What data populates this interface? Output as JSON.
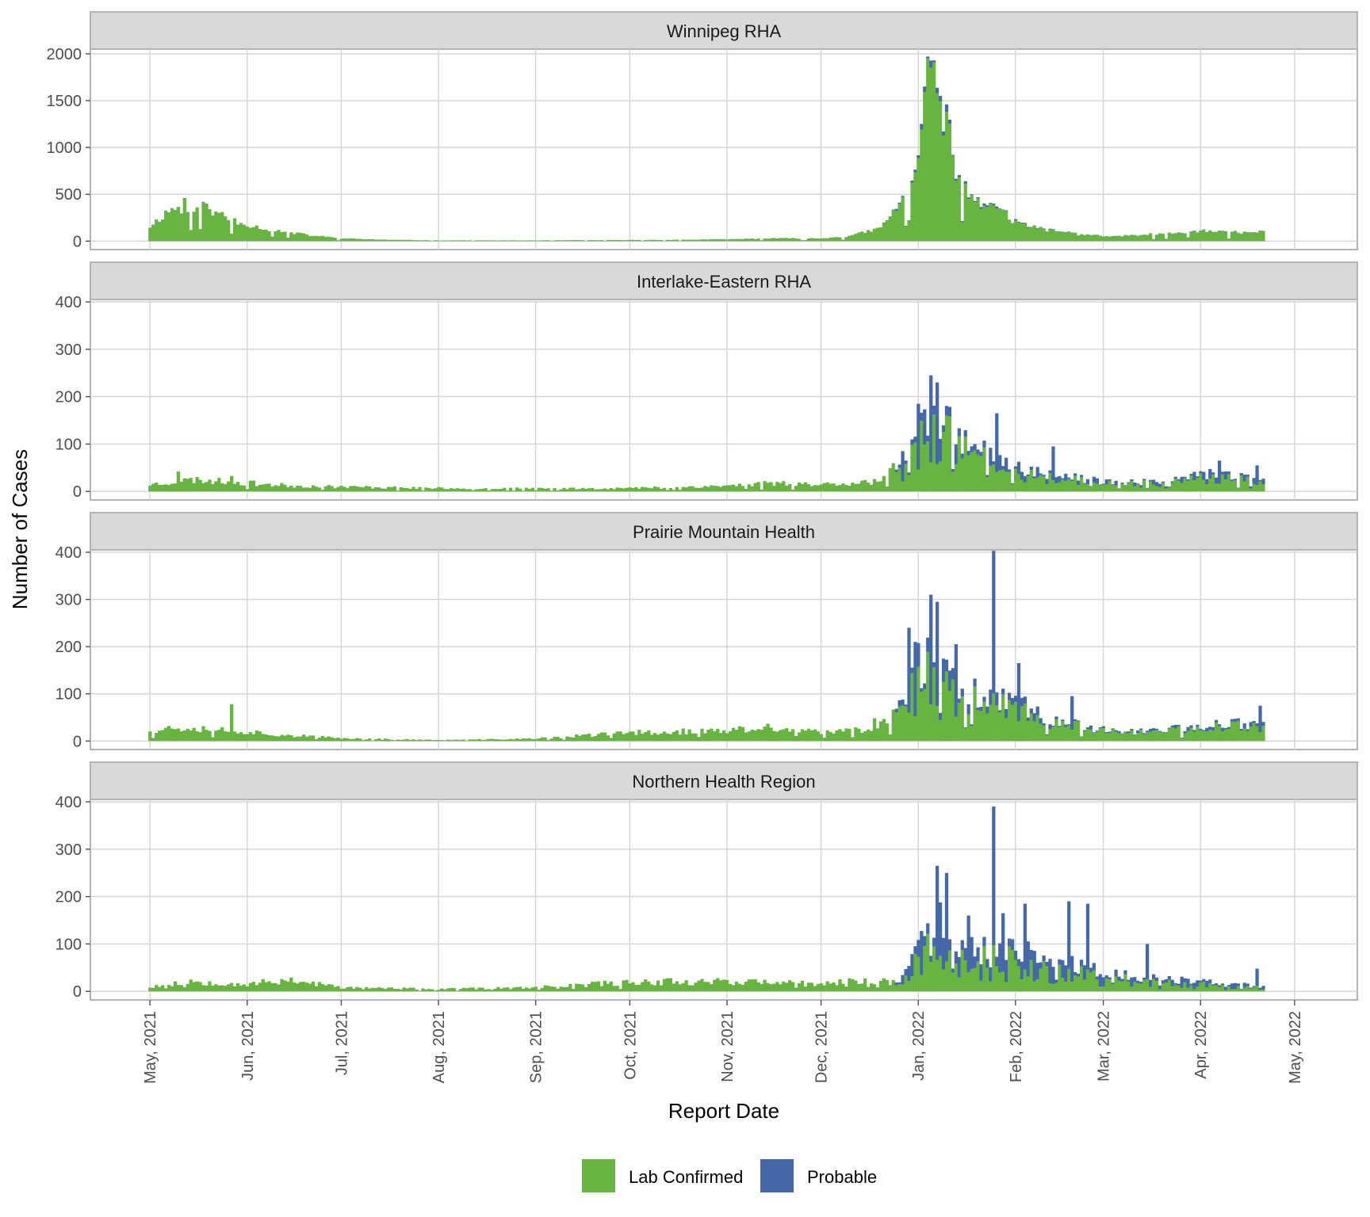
{
  "chart_data": {
    "type": "bar",
    "stacked": true,
    "xlabel": "Report Date",
    "ylabel": "Number of Cases",
    "x_ticks": [
      "May, 2021",
      "Jun, 2021",
      "Jul, 2021",
      "Aug, 2021",
      "Sep, 2021",
      "Oct, 2021",
      "Nov, 2021",
      "Dec, 2021",
      "Jan, 2022",
      "Feb, 2022",
      "Mar, 2022",
      "Apr, 2022",
      "May, 2022"
    ],
    "x_range": [
      "2021-04-12",
      "2022-05-21"
    ],
    "legend": {
      "position": "bottom",
      "entries": [
        {
          "name": "Lab Confirmed",
          "color": "#67b540"
        },
        {
          "name": "Probable",
          "color": "#4568a8"
        }
      ]
    },
    "grid": true,
    "panels": [
      {
        "title": "Winnipeg RHA",
        "ylim": [
          -90,
          2050
        ],
        "yticks": [
          0,
          500,
          1000,
          1500,
          2000
        ],
        "anchors": [
          [
            "2021-05-01",
            160
          ],
          [
            "2021-05-08",
            350
          ],
          [
            "2021-05-15",
            330
          ],
          [
            "2021-05-22",
            290
          ],
          [
            "2021-05-31",
            190
          ],
          [
            "2021-06-07",
            130
          ],
          [
            "2021-06-15",
            90
          ],
          [
            "2021-06-22",
            60
          ],
          [
            "2021-07-01",
            30
          ],
          [
            "2021-07-15",
            15
          ],
          [
            "2021-08-01",
            8
          ],
          [
            "2021-09-01",
            8
          ],
          [
            "2021-10-01",
            12
          ],
          [
            "2021-10-15",
            15
          ],
          [
            "2021-11-01",
            20
          ],
          [
            "2021-11-15",
            30
          ],
          [
            "2021-12-01",
            30
          ],
          [
            "2021-12-10",
            55
          ],
          [
            "2021-12-20",
            140
          ],
          [
            "2021-12-26",
            400
          ],
          [
            "2021-12-30",
            720
          ],
          [
            "2022-01-03",
            1450
          ],
          [
            "2022-01-05",
            1700
          ],
          [
            "2022-01-08",
            1550
          ],
          [
            "2022-01-11",
            1150
          ],
          [
            "2022-01-14",
            600
          ],
          [
            "2022-01-18",
            430
          ],
          [
            "2022-01-22",
            400
          ],
          [
            "2022-01-26",
            350
          ],
          [
            "2022-02-01",
            210
          ],
          [
            "2022-02-08",
            140
          ],
          [
            "2022-02-15",
            100
          ],
          [
            "2022-02-22",
            70
          ],
          [
            "2022-03-01",
            55
          ],
          [
            "2022-03-08",
            60
          ],
          [
            "2022-03-15",
            70
          ],
          [
            "2022-03-22",
            80
          ],
          [
            "2022-03-31",
            110
          ],
          [
            "2022-04-08",
            100
          ],
          [
            "2022-04-15",
            90
          ],
          [
            "2022-04-21",
            110
          ]
        ],
        "spikes": [
          [
            "2021-05-12",
            460
          ],
          [
            "2021-05-18",
            420
          ],
          [
            "2021-05-19",
            400
          ],
          [
            "2021-05-24",
            310
          ],
          [
            "2022-01-04",
            1970
          ],
          [
            "2022-01-06",
            1930
          ],
          [
            "2022-01-08",
            1550
          ],
          [
            "2022-01-16",
            640
          ],
          [
            "2022-01-24",
            410
          ],
          [
            "2022-01-10",
            1460
          ]
        ],
        "noise": 0.18,
        "probable_peak": 0.03,
        "probable_floor": 0.02,
        "seed": 11
      },
      {
        "title": "Interlake-Eastern RHA",
        "ylim": [
          -18,
          405
        ],
        "yticks": [
          0,
          100,
          200,
          300,
          400
        ],
        "anchors": [
          [
            "2021-05-01",
            15
          ],
          [
            "2021-05-15",
            25
          ],
          [
            "2021-06-01",
            18
          ],
          [
            "2021-06-15",
            12
          ],
          [
            "2021-07-01",
            10
          ],
          [
            "2021-08-01",
            7
          ],
          [
            "2021-09-01",
            6
          ],
          [
            "2021-10-01",
            7
          ],
          [
            "2021-11-01",
            12
          ],
          [
            "2021-11-15",
            18
          ],
          [
            "2021-12-01",
            15
          ],
          [
            "2021-12-20",
            22
          ],
          [
            "2021-12-26",
            55
          ],
          [
            "2021-12-30",
            110
          ],
          [
            "2022-01-03",
            165
          ],
          [
            "2022-01-06",
            200
          ],
          [
            "2022-01-10",
            140
          ],
          [
            "2022-01-15",
            110
          ],
          [
            "2022-01-20",
            90
          ],
          [
            "2022-01-26",
            70
          ],
          [
            "2022-02-01",
            50
          ],
          [
            "2022-02-10",
            35
          ],
          [
            "2022-02-20",
            30
          ],
          [
            "2022-03-01",
            20
          ],
          [
            "2022-03-15",
            20
          ],
          [
            "2022-03-29",
            30
          ],
          [
            "2022-04-08",
            40
          ],
          [
            "2022-04-21",
            20
          ]
        ],
        "spikes": [
          [
            "2022-01-05",
            245
          ],
          [
            "2022-01-07",
            230
          ],
          [
            "2022-01-01",
            185
          ],
          [
            "2021-12-27",
            85
          ],
          [
            "2022-01-26",
            165
          ],
          [
            "2022-02-13",
            95
          ],
          [
            "2022-04-07",
            65
          ],
          [
            "2022-04-19",
            55
          ],
          [
            "2021-05-10",
            42
          ],
          [
            "2021-05-27",
            33
          ]
        ],
        "noise": 0.35,
        "probable_peak": 0.04,
        "probable_floor": 0.25,
        "seed": 23
      },
      {
        "title": "Prairie Mountain Health",
        "ylim": [
          -18,
          405
        ],
        "yticks": [
          0,
          100,
          200,
          300,
          400
        ],
        "anchors": [
          [
            "2021-05-01",
            25
          ],
          [
            "2021-05-15",
            30
          ],
          [
            "2021-06-01",
            20
          ],
          [
            "2021-06-15",
            12
          ],
          [
            "2021-07-01",
            6
          ],
          [
            "2021-08-01",
            2
          ],
          [
            "2021-09-01",
            5
          ],
          [
            "2021-10-01",
            18
          ],
          [
            "2021-11-01",
            22
          ],
          [
            "2021-11-15",
            28
          ],
          [
            "2021-12-01",
            18
          ],
          [
            "2021-12-15",
            25
          ],
          [
            "2021-12-24",
            60
          ],
          [
            "2021-12-30",
            140
          ],
          [
            "2022-01-04",
            190
          ],
          [
            "2022-01-08",
            200
          ],
          [
            "2022-01-12",
            140
          ],
          [
            "2022-01-18",
            110
          ],
          [
            "2022-01-24",
            100
          ],
          [
            "2022-02-01",
            80
          ],
          [
            "2022-02-10",
            50
          ],
          [
            "2022-02-20",
            35
          ],
          [
            "2022-03-01",
            25
          ],
          [
            "2022-03-15",
            20
          ],
          [
            "2022-03-31",
            30
          ],
          [
            "2022-04-10",
            40
          ],
          [
            "2022-04-21",
            35
          ]
        ],
        "spikes": [
          [
            "2022-01-25",
            403
          ],
          [
            "2022-01-05",
            310
          ],
          [
            "2022-01-07",
            295
          ],
          [
            "2021-12-29",
            240
          ],
          [
            "2021-12-31",
            210
          ],
          [
            "2022-02-02",
            165
          ],
          [
            "2022-01-13",
            205
          ],
          [
            "2022-02-19",
            95
          ],
          [
            "2021-05-27",
            78
          ],
          [
            "2022-04-20",
            75
          ]
        ],
        "noise": 0.35,
        "probable_peak": 0.12,
        "probable_floor": 0.12,
        "seed": 37
      },
      {
        "title": "Northern Health Region",
        "ylim": [
          -18,
          405
        ],
        "yticks": [
          0,
          100,
          200,
          300,
          400
        ],
        "anchors": [
          [
            "2021-05-01",
            10
          ],
          [
            "2021-05-15",
            22
          ],
          [
            "2021-06-01",
            15
          ],
          [
            "2021-06-15",
            25
          ],
          [
            "2021-07-01",
            8
          ],
          [
            "2021-08-01",
            5
          ],
          [
            "2021-09-01",
            8
          ],
          [
            "2021-10-01",
            20
          ],
          [
            "2021-11-01",
            22
          ],
          [
            "2021-12-01",
            15
          ],
          [
            "2021-12-15",
            25
          ],
          [
            "2021-12-26",
            20
          ],
          [
            "2021-12-31",
            80
          ],
          [
            "2022-01-05",
            180
          ],
          [
            "2022-01-10",
            140
          ],
          [
            "2022-01-17",
            100
          ],
          [
            "2022-01-25",
            80
          ],
          [
            "2022-02-01",
            90
          ],
          [
            "2022-02-10",
            70
          ],
          [
            "2022-02-20",
            55
          ],
          [
            "2022-03-01",
            40
          ],
          [
            "2022-03-15",
            30
          ],
          [
            "2022-04-01",
            20
          ],
          [
            "2022-04-21",
            10
          ]
        ],
        "spikes": [
          [
            "2022-01-25",
            390
          ],
          [
            "2022-01-07",
            265
          ],
          [
            "2022-01-10",
            250
          ],
          [
            "2022-01-17",
            160
          ],
          [
            "2022-01-28",
            165
          ],
          [
            "2022-02-04",
            185
          ],
          [
            "2022-02-18",
            190
          ],
          [
            "2022-02-24",
            185
          ],
          [
            "2022-03-15",
            100
          ],
          [
            "2022-04-19",
            48
          ]
        ],
        "noise": 0.4,
        "probable_peak": 0.2,
        "probable_floor": 0.35,
        "seed": 53
      }
    ]
  }
}
